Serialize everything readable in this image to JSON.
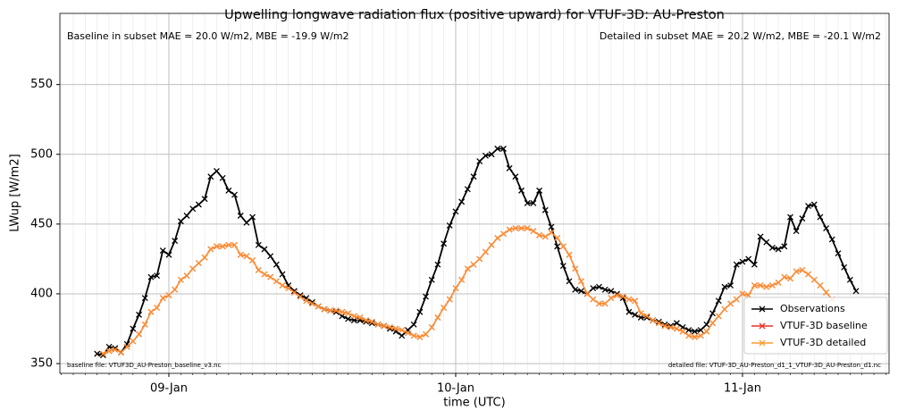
{
  "chart_data": {
    "type": "line",
    "title": "Upwelling longwave radiation flux (positive upward) for VTUF-3D: AU-Preston",
    "xlabel": "time (UTC)",
    "ylabel": "LWup [W/m2]",
    "annotations": [
      "Baseline in subset MAE = 20.0 W/m2, MBE = -19.9 W/m2",
      "Detailed in subset MAE = 20.2 W/m2, MBE = -20.1 W/m2",
      "baseline file: VTUF3D_AU-Preston_baseline_v3.nc",
      "detailed file: VTUF-3D_AU-Preston_d1_1_VTUF-3D_AU-Preston_d1.nc"
    ],
    "x_start": 8.75,
    "x_step": 0.0208333,
    "xlim": [
      8.62,
      11.511
    ],
    "ylim": [
      343,
      601
    ],
    "xticks": [
      {
        "value": 9,
        "label": "09-Jan"
      },
      {
        "value": 10,
        "label": "10-Jan"
      },
      {
        "value": 11,
        "label": "11-Jan"
      }
    ],
    "yticks": [
      350,
      400,
      450,
      500,
      550
    ],
    "grid": true,
    "minor_grid": true,
    "legend": "lower right",
    "series": [
      {
        "name": "Observations",
        "color": "#000000",
        "marker": "x",
        "values": [
          357,
          356,
          362,
          361,
          358,
          364,
          375,
          385,
          397,
          412,
          413,
          431,
          428,
          438,
          452,
          456,
          461,
          464,
          468,
          484,
          488,
          483,
          474,
          471,
          456,
          451,
          455,
          435,
          432,
          427,
          421,
          414,
          406,
          402,
          399,
          397,
          394,
          391,
          389,
          388,
          387,
          384,
          382,
          381,
          381,
          380,
          379,
          378,
          377,
          375,
          373,
          370,
          374,
          378,
          387,
          398,
          410,
          421,
          436,
          449,
          459,
          466,
          475,
          484,
          495,
          499,
          500,
          504,
          504,
          490,
          484,
          474,
          465,
          465,
          474,
          460,
          448,
          434,
          420,
          409,
          403,
          402,
          400,
          404,
          405,
          403,
          402,
          400,
          397,
          387,
          385,
          383,
          383,
          381,
          380,
          378,
          377,
          379,
          376,
          374,
          373,
          374,
          378,
          386,
          395,
          405,
          406,
          421,
          423,
          425,
          421,
          441,
          437,
          433,
          432,
          434,
          455,
          445,
          454,
          463,
          464,
          455,
          447,
          439,
          429,
          419,
          410,
          402
        ]
      },
      {
        "name": "VTUF-3D baseline",
        "color": "#e8312a",
        "marker": "x",
        "values": [
          null,
          357,
          359,
          360,
          358,
          362,
          366,
          371,
          378,
          387,
          390,
          397,
          399,
          403,
          410,
          413,
          418,
          422,
          426,
          432,
          434,
          434,
          435,
          435,
          428,
          427,
          424,
          417,
          414,
          412,
          409,
          406,
          404,
          401,
          398,
          395,
          393,
          391,
          389,
          388,
          388,
          387,
          386,
          384,
          383,
          381,
          380,
          378,
          377,
          376,
          375,
          374,
          372,
          370,
          369,
          371,
          376,
          383,
          390,
          396,
          404,
          410,
          418,
          421,
          425,
          430,
          435,
          440,
          443,
          446,
          447,
          447,
          447,
          445,
          442,
          441,
          444,
          440,
          434,
          428,
          418,
          409,
          400,
          396,
          393,
          393,
          397,
          399,
          398,
          396,
          395,
          386,
          384,
          381,
          379,
          377,
          376,
          375,
          373,
          370,
          369,
          370,
          373,
          379,
          384,
          389,
          393,
          396,
          400,
          399,
          406,
          406,
          405,
          406,
          408,
          412,
          411,
          416,
          417,
          414,
          410,
          406,
          401,
          396,
          null,
          null,
          null,
          null
        ]
      },
      {
        "name": "VTUF-3D detailed",
        "color": "#ff9a2e",
        "marker": "x",
        "values": [
          null,
          357,
          359,
          360,
          358,
          362,
          366,
          371,
          378,
          387,
          390,
          397,
          399,
          403,
          410,
          413,
          418,
          422,
          426,
          432,
          434,
          434,
          435,
          435,
          428,
          427,
          424,
          417,
          414,
          412,
          409,
          406,
          404,
          401,
          398,
          395,
          393,
          391,
          389,
          388,
          388,
          387,
          386,
          384,
          383,
          381,
          380,
          378,
          377,
          376,
          375,
          374,
          372,
          370,
          369,
          371,
          376,
          383,
          390,
          396,
          404,
          410,
          418,
          421,
          425,
          430,
          435,
          440,
          443,
          446,
          447,
          447,
          447,
          445,
          442,
          441,
          444,
          440,
          434,
          428,
          418,
          409,
          400,
          396,
          393,
          393,
          397,
          399,
          398,
          396,
          395,
          386,
          384,
          381,
          379,
          377,
          376,
          375,
          373,
          370,
          369,
          370,
          373,
          379,
          384,
          389,
          393,
          396,
          400,
          399,
          406,
          406,
          405,
          406,
          408,
          412,
          411,
          416,
          417,
          414,
          410,
          406,
          401,
          396,
          null,
          null,
          null,
          null
        ]
      }
    ]
  }
}
